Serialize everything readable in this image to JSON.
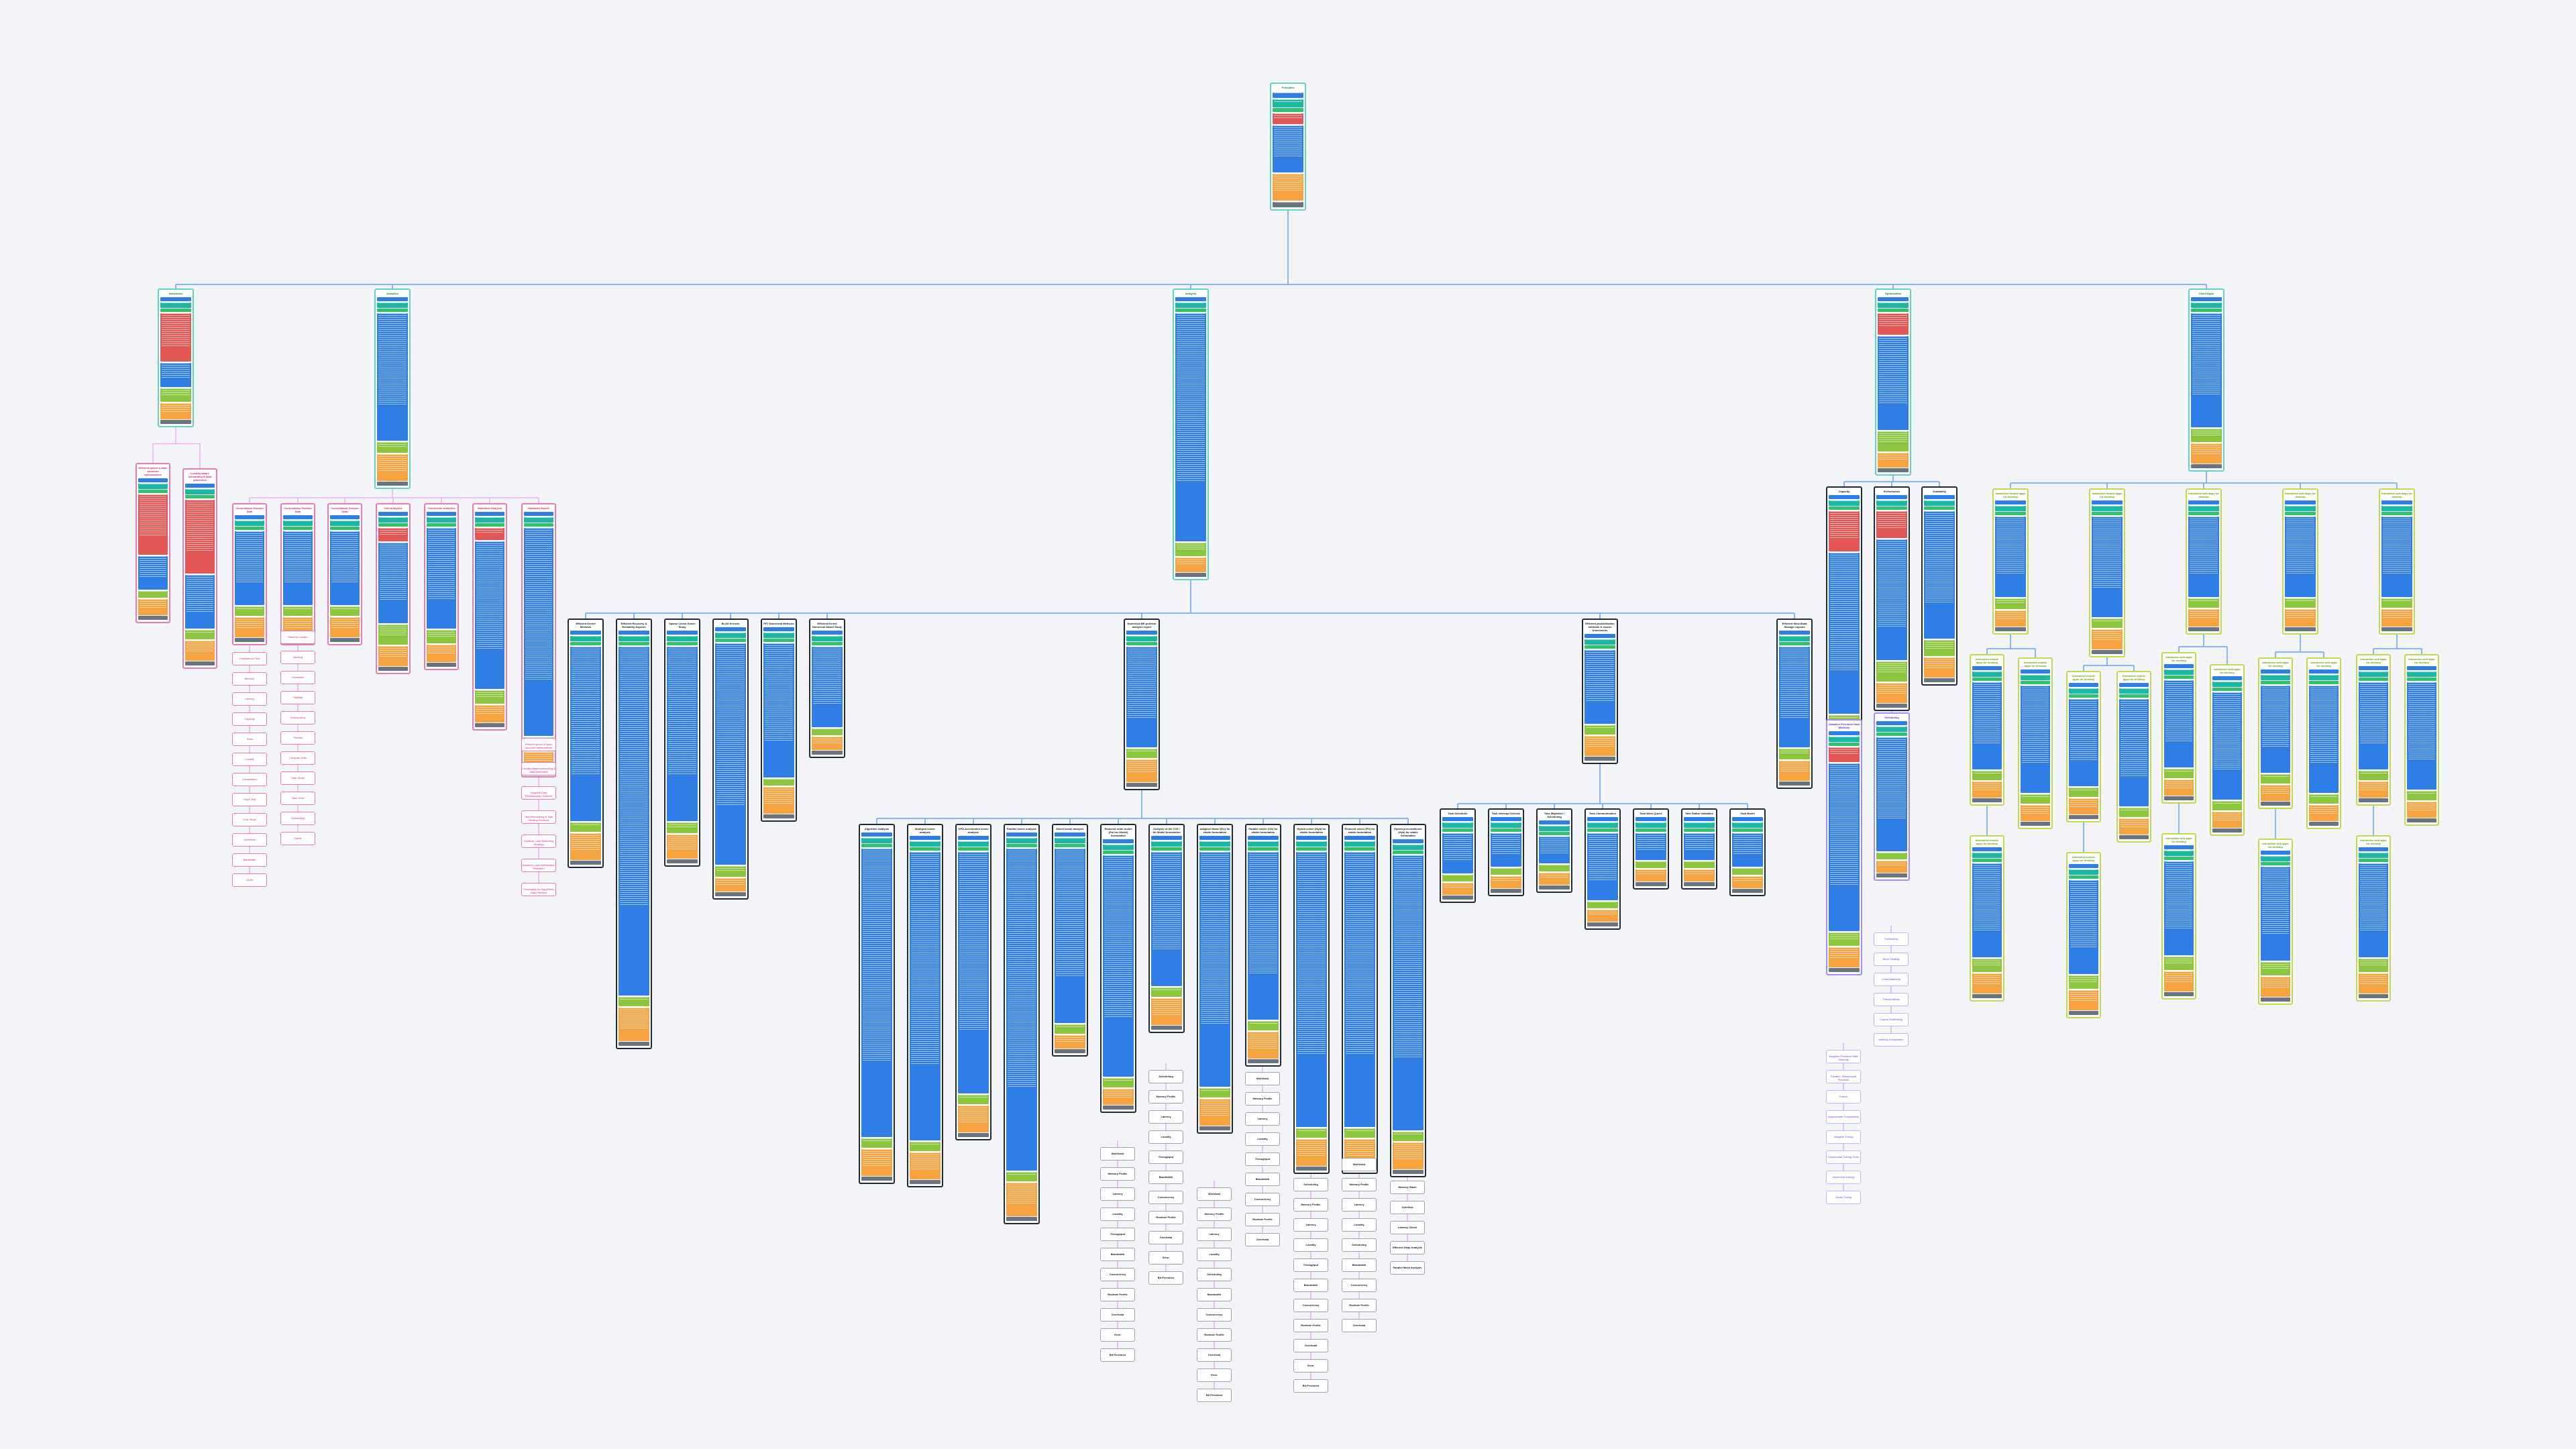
{
  "diagram": {
    "colors": {
      "background": "#f2f4f7",
      "edge": "#60a5fa",
      "edge_pink": "#f0abfc",
      "edge_violet": "#c4b5fd",
      "blue": "#2f7ee6",
      "teal": "#19b7a4",
      "green": "#2fc46b",
      "red": "#e25656",
      "orange": "#f6a340",
      "lime": "#8cc63f",
      "grey": "#6b7280",
      "border_dark": "#1f2937",
      "border_teal": "#5fd6c5",
      "border_pink": "#e879b9",
      "border_violet": "#a78bfa",
      "border_lime": "#c3d94e"
    },
    "root": {
      "title": "Principles"
    },
    "branches": [
      {
        "title": "Attractions"
      },
      {
        "title": "Analytics"
      },
      {
        "title": "Analysis"
      },
      {
        "title": "Optimization"
      },
      {
        "title": "Client Apps"
      }
    ],
    "analytics_children": [
      {
        "title": "Consolidated Session Data"
      },
      {
        "title": "Consolidated Session Data"
      },
      {
        "title": "Consolidated Session Data"
      },
      {
        "title": "Grid Analytics"
      },
      {
        "title": "Connection Analytics"
      },
      {
        "title": "Statistical Analysis"
      },
      {
        "title": "Statistics Report"
      }
    ],
    "analysis_children": [
      {
        "title": "Efficient Kernel Methods"
      },
      {
        "title": "Efficient Recovery & Reliability Aspects"
      },
      {
        "title": "Sparse Linear Solver Study"
      },
      {
        "title": "BLAS Kernels"
      },
      {
        "title": "FFT Numerical Methods"
      },
      {
        "title": "Efficient Kernel Numerical Model Study"
      },
      {
        "title": "Numerical BE problem analysis report"
      },
      {
        "title": "Efficient parallelization methods & cluster frameworks"
      },
      {
        "title": "Efficient Mesh/Data Storage Layouts"
      }
    ],
    "analysis_grandchildren": [
      {
        "title": "Algorithm Analysis"
      },
      {
        "title": "Multigrid solver analysis"
      },
      {
        "title": "GPU-Accelerated solver analysis"
      },
      {
        "title": "Parallel solver analysis"
      },
      {
        "title": "Mixed solver analysis"
      },
      {
        "title": "Reduced order model (Pol-Inv Model) formulation"
      },
      {
        "title": "Analysis of the CVE / Air Model formulation"
      },
      {
        "title": "Adaptive Model (Err) for stable formulation"
      },
      {
        "title": "Parallel solver (CG) for stable formulation"
      },
      {
        "title": "Hybrid solver (Hyb) for stable formulation"
      },
      {
        "title": "Reduced solver (Ph) for stable formulation"
      },
      {
        "title": "Hybrid preconditioner (Hyb) for stable formulation"
      }
    ],
    "solver_cards": [
      {
        "title": "Task Scheduler"
      },
      {
        "title": "Task Interrupt Scheme"
      },
      {
        "title": "Task Migration / Scheduling"
      },
      {
        "title": "Task Communication"
      },
      {
        "title": "Task Work Queue"
      },
      {
        "title": "Task Status Validation"
      },
      {
        "title": "Task Model"
      }
    ],
    "optimization_children": [
      {
        "title": "Capacity"
      },
      {
        "title": "Performance"
      },
      {
        "title": "Scalability"
      },
      {
        "title": "Efficient Solver Method"
      }
    ],
    "client_children": [
      {
        "title": "Interactive mobile apps for desktop"
      },
      {
        "title": "Interactive mobile apps for desktop"
      },
      {
        "title": "Interactive web apps for desktop"
      },
      {
        "title": "Interactive web apps for desktop"
      },
      {
        "title": "Interactive web apps for desktop"
      }
    ],
    "pink_list_a": [
      "Consistency Test",
      "Memory",
      "Latency",
      "Capacity",
      "Trace",
      "Locality",
      "Compaction",
      "Trace Test",
      "Cost Study",
      "Overhead",
      "Bandwidth",
      "Order"
    ],
    "pink_list_b": [
      "Memory Loaded",
      "Aliasing",
      "Overhead",
      "Stability",
      "Concurrency",
      "Parallel",
      "Compute Gain",
      "Task Study",
      "Task Time",
      "Scheduling",
      "Cache"
    ],
    "pink_list_c": [
      "Efficient queue & data-structure optimizations",
      "Locality-aware scheduling & data placement",
      "Adaptive Data Redistribution Scheme",
      "Task Remapping & Task Stealing Routines",
      "Dynamic Load Balancing Strategy",
      "Adaptive Load Optimization Research",
      "Techniques for Algorithmic Data Partition"
    ],
    "violet_list_a": [
      "Adaptive Precision Data Methods",
      "Parallel / Hierarchical Precision",
      "Fusion",
      "Approximate Computation",
      "Adaptive Tuning",
      "Incremental Solving Tools",
      "Numerical Solving",
      "Cache Tuning"
    ],
    "violet_list_b": [
      "Scheduling",
      "Work Stealing",
      "Load Balancing",
      "Thread Affinity",
      "Coarse Scheduling",
      "Memory Compaction"
    ],
    "metric_list_a": [
      "Workload",
      "Memory Profile",
      "Latency",
      "Locality",
      "Throughput",
      "Bandwidth",
      "Concurrency",
      "Runtime Profile",
      "Overhead",
      "Error",
      "Bit Precision"
    ],
    "metric_list_b": [
      "Scheduling",
      "Memory Profile",
      "Latency",
      "Locality",
      "Throughput",
      "Bandwidth",
      "Concurrency",
      "Runtime Profile",
      "Overhead",
      "Error",
      "Bit Precision"
    ],
    "metric_list_c": [
      "Workload",
      "Memory Profile",
      "Latency",
      "Locality",
      "Scheduling",
      "Bandwidth",
      "Concurrency",
      "Runtime Profile",
      "Overhead",
      "Error",
      "Bit Precision"
    ],
    "metric_list_d": [
      "Memory Stack",
      "Overflow",
      "Latency Check",
      "Efficient Heap Analysis",
      "Parallel Mesh Analysis"
    ]
  }
}
